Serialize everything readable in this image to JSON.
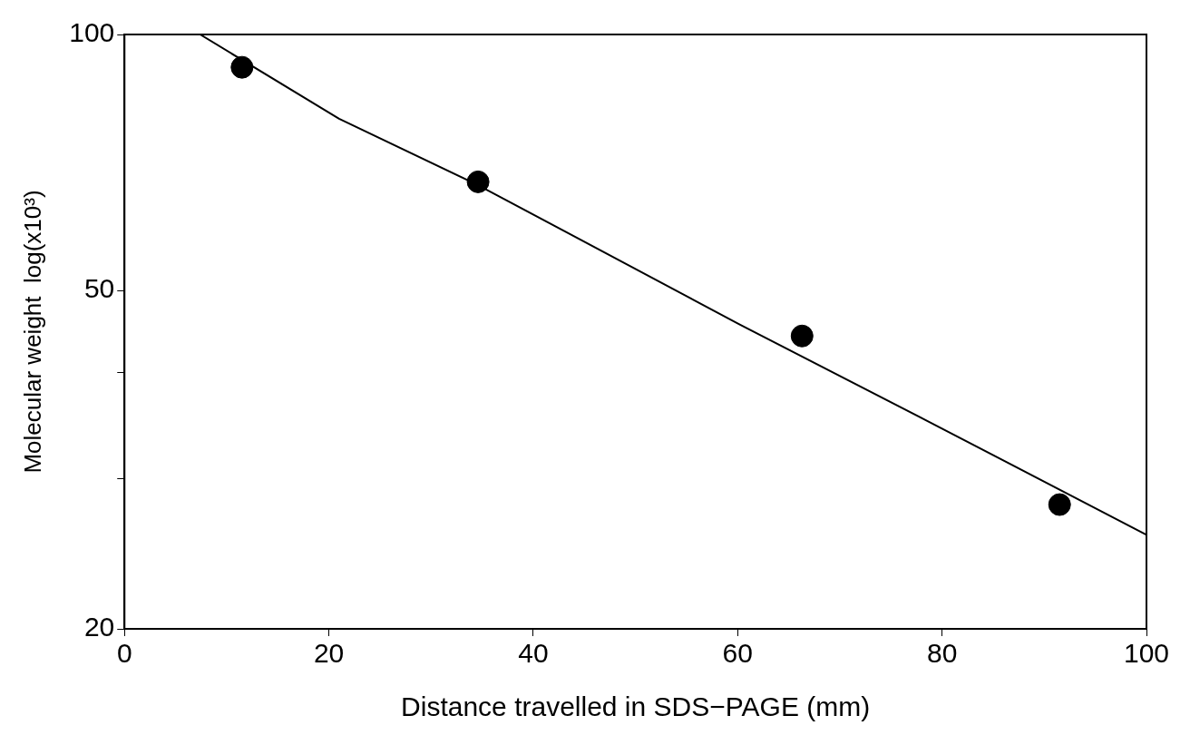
{
  "chart_data": {
    "type": "scatter",
    "xlabel": "Distance travelled in SDS−PAGE (mm)",
    "ylabel": "Molecular weight  log(x10³)",
    "series": [
      {
        "color": "#000000",
        "marker": "circle",
        "x": [
          11.5,
          34.6,
          66.3,
          91.5
        ],
        "values": [
          91.5,
          67.1,
          44.2,
          28.0
        ]
      },
      {
        "type": "line",
        "color": "#000000",
        "marker": "none",
        "x": [
          7.4,
          21,
          34.6,
          60.2,
          80,
          100
        ],
        "values": [
          100,
          79.6,
          66.5,
          45.6,
          34.4,
          25.8
        ]
      }
    ],
    "log": "y",
    "xlim": [
      0,
      100
    ],
    "xticks": [
      0,
      20,
      40,
      60,
      80,
      100
    ],
    "ylim": [
      20,
      100
    ],
    "yticks": [
      20,
      {
        "value": 30,
        "label": null
      },
      {
        "value": 40,
        "label": null
      },
      50,
      100
    ],
    "grid": false,
    "legend": false
  }
}
